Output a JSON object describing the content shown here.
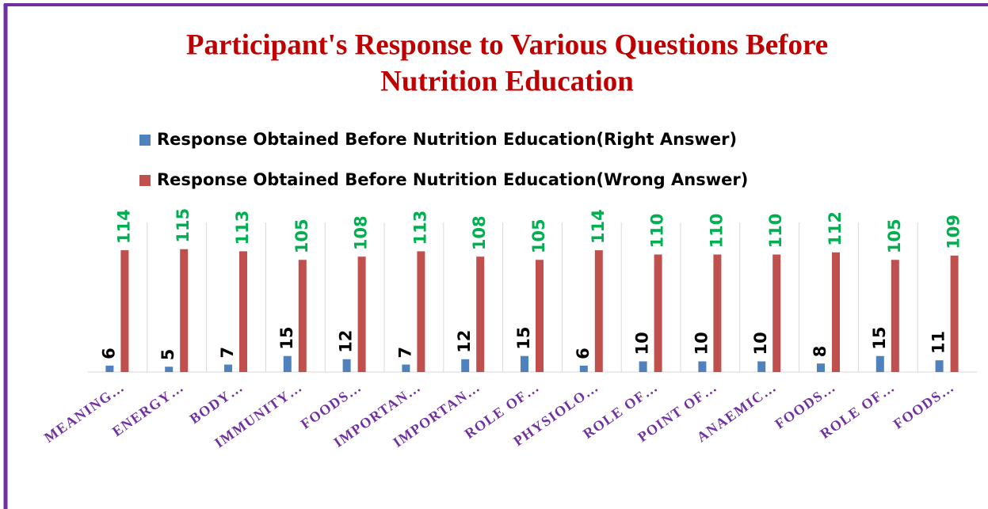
{
  "chart_data": {
    "type": "bar",
    "title": [
      "Participant's Response to Various Questions Before",
      "Nutrition Education"
    ],
    "categories": [
      "MEANING…",
      "ENERGY…",
      "BODY…",
      "IMMUNITY…",
      "FOODS…",
      "IMPORTAN…",
      "IMPORTAN…",
      "ROLE OF…",
      "PHYSIOLO…",
      "ROLE OF…",
      "POINT OF…",
      "ANAEMIC…",
      "FOODS…",
      "ROLE OF…",
      "FOODS…"
    ],
    "series": [
      {
        "name": "Response Obtained Before Nutrition Education(Right Answer)",
        "color": "#4f81bd",
        "label_color": "#000000",
        "values": [
          6,
          5,
          7,
          15,
          12,
          7,
          12,
          15,
          6,
          10,
          10,
          10,
          8,
          15,
          11
        ]
      },
      {
        "name": "Response Obtained Before Nutrition Education(Wrong Answer)",
        "color": "#c0504d",
        "label_color": "#00b050",
        "values": [
          114,
          115,
          113,
          105,
          108,
          113,
          108,
          105,
          114,
          110,
          110,
          110,
          112,
          105,
          109
        ]
      }
    ],
    "ylim": [
      0,
      140
    ],
    "grid": true
  }
}
